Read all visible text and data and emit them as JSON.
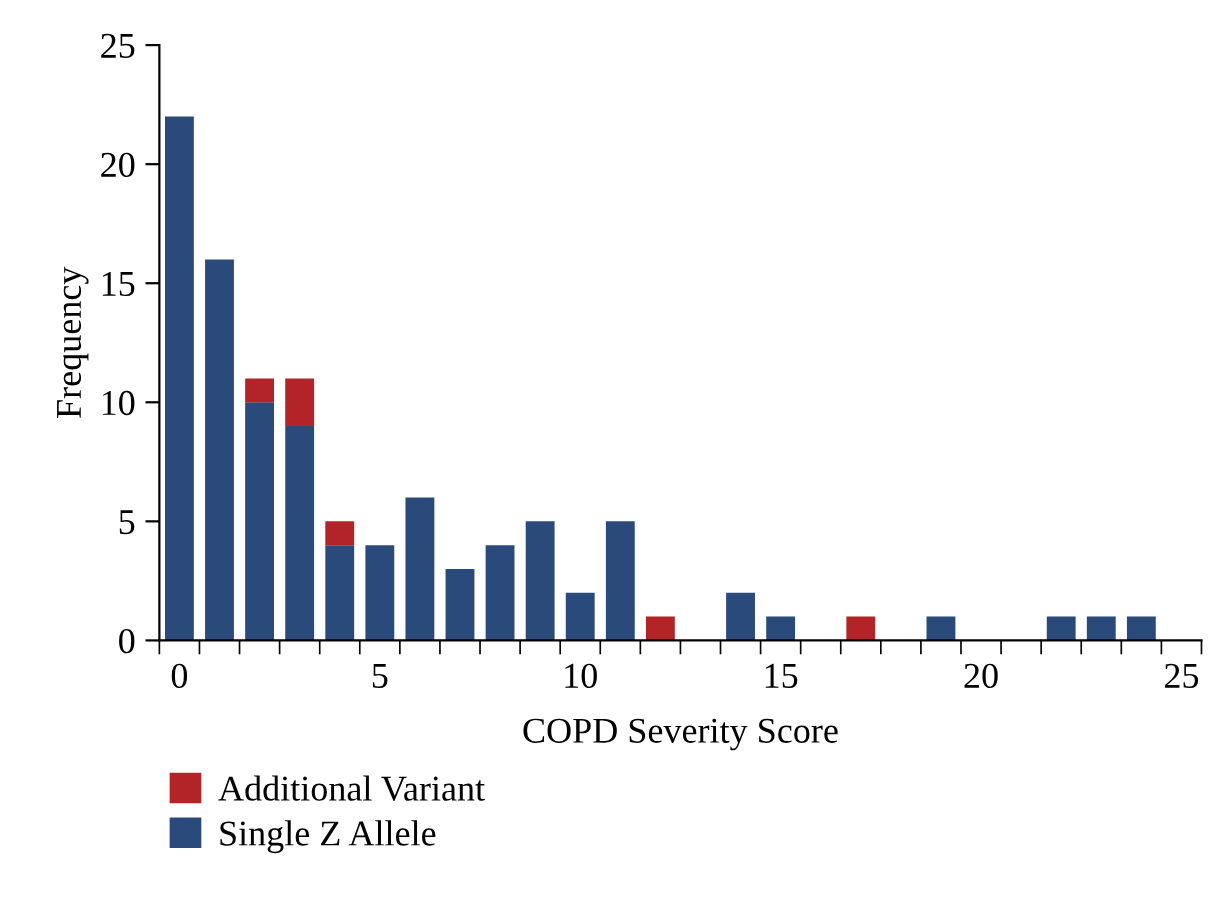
{
  "chart_data": {
    "type": "bar",
    "xlabel": "COPD Severity Score",
    "ylabel": "Frequency",
    "categories": [
      "0",
      null,
      null,
      null,
      null,
      "5",
      null,
      null,
      null,
      null,
      "10",
      null,
      null,
      null,
      null,
      "15",
      null,
      null,
      null,
      null,
      "20",
      null,
      null,
      null,
      null,
      "25"
    ],
    "series": [
      {
        "name": "Single Z Allele",
        "color": "#2a4a7b",
        "values": [
          22,
          16,
          10,
          9,
          4,
          4,
          6,
          3,
          4,
          5,
          2,
          5,
          0,
          0,
          2,
          1,
          0,
          0,
          0,
          1,
          0,
          0,
          1,
          1,
          1,
          0
        ]
      },
      {
        "name": "Additional Variant",
        "color": "#b22427",
        "values": [
          0,
          0,
          1,
          2,
          1,
          0,
          0,
          0,
          0,
          0,
          0,
          0,
          1,
          0,
          0,
          0,
          0,
          1,
          0,
          0,
          0,
          0,
          0,
          0,
          0,
          0
        ]
      }
    ],
    "stacked": true,
    "ylim": [
      0,
      25
    ],
    "yticks": [
      0,
      5,
      10,
      15,
      20,
      25
    ],
    "grid": false,
    "legend": "bottom"
  }
}
